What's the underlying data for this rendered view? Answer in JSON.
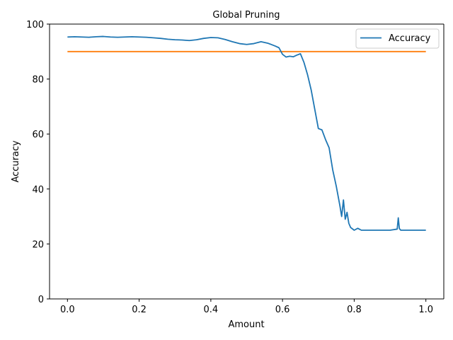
{
  "chart_data": {
    "type": "line",
    "title": "Global Pruning",
    "xlabel": "Amount",
    "ylabel": "Accuracy",
    "xlim": [
      -0.05,
      1.05
    ],
    "ylim": [
      0,
      100
    ],
    "xticks": [
      0.0,
      0.2,
      0.4,
      0.6,
      0.8,
      1.0
    ],
    "xtick_labels": [
      "0.0",
      "0.2",
      "0.4",
      "0.6",
      "0.8",
      "1.0"
    ],
    "yticks": [
      0,
      20,
      40,
      60,
      80,
      100
    ],
    "ytick_labels": [
      "0",
      "20",
      "40",
      "60",
      "80",
      "100"
    ],
    "grid": false,
    "legend": {
      "placement": "top-right"
    },
    "series": [
      {
        "name": "Accuracy",
        "color": "#1f77b4",
        "x": [
          0.0,
          0.02,
          0.04,
          0.06,
          0.08,
          0.1,
          0.12,
          0.14,
          0.16,
          0.18,
          0.2,
          0.22,
          0.24,
          0.26,
          0.28,
          0.3,
          0.32,
          0.34,
          0.36,
          0.38,
          0.4,
          0.42,
          0.44,
          0.46,
          0.48,
          0.5,
          0.52,
          0.54,
          0.56,
          0.58,
          0.59,
          0.6,
          0.61,
          0.62,
          0.63,
          0.64,
          0.65,
          0.66,
          0.67,
          0.68,
          0.69,
          0.7,
          0.71,
          0.72,
          0.73,
          0.74,
          0.75,
          0.76,
          0.765,
          0.77,
          0.775,
          0.78,
          0.785,
          0.79,
          0.8,
          0.81,
          0.82,
          0.84,
          0.86,
          0.88,
          0.9,
          0.92,
          0.923,
          0.926,
          0.93,
          0.95,
          1.0
        ],
        "y": [
          95.3,
          95.4,
          95.3,
          95.2,
          95.4,
          95.5,
          95.3,
          95.2,
          95.3,
          95.4,
          95.3,
          95.2,
          95.0,
          94.8,
          94.5,
          94.3,
          94.2,
          94.0,
          94.3,
          94.8,
          95.1,
          95.0,
          94.4,
          93.6,
          92.9,
          92.6,
          92.9,
          93.6,
          93.0,
          92.0,
          91.4,
          89.0,
          88.0,
          88.3,
          88.1,
          88.7,
          89.2,
          86.0,
          81.5,
          76.0,
          69.0,
          62.0,
          61.5,
          58.0,
          55.0,
          47.0,
          41.0,
          34.0,
          30.0,
          36.0,
          29.0,
          31.5,
          27.5,
          26.0,
          25.0,
          25.7,
          25.0,
          25.0,
          25.0,
          25.0,
          25.0,
          25.4,
          29.5,
          25.6,
          25.0,
          25.0,
          25.0
        ]
      },
      {
        "name": "",
        "color": "#ff7f0e",
        "x": [
          0.0,
          1.0
        ],
        "y": [
          90,
          90
        ]
      }
    ]
  }
}
